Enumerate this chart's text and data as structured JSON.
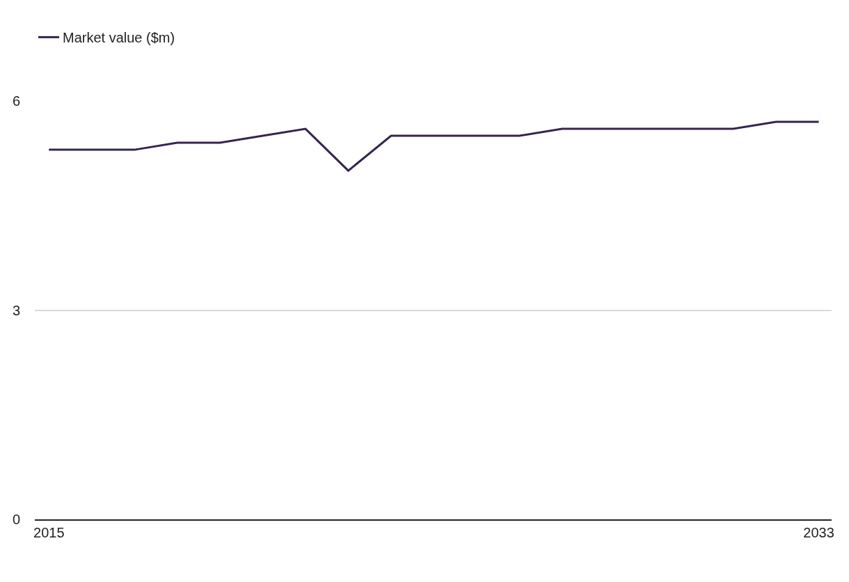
{
  "chart_data": {
    "type": "line",
    "x": [
      2015,
      2016,
      2017,
      2018,
      2019,
      2020,
      2021,
      2022,
      2023,
      2024,
      2025,
      2026,
      2027,
      2028,
      2029,
      2030,
      2031,
      2032,
      2033
    ],
    "series": [
      {
        "name": "Market value ($m)",
        "color": "#35244f",
        "values": [
          5.3,
          5.3,
          5.3,
          5.4,
          5.4,
          5.5,
          5.6,
          5.0,
          5.5,
          5.5,
          5.5,
          5.5,
          5.6,
          5.6,
          5.6,
          5.6,
          5.6,
          5.7,
          5.7
        ]
      }
    ],
    "xlim": [
      2014.67,
      2033.3
    ],
    "xticks": [
      2015,
      2033
    ],
    "ylim": [
      0,
      6
    ],
    "yticks": [
      0,
      3,
      6
    ],
    "grid": "y",
    "legend": "top left",
    "marker": "none",
    "line_style": "solid"
  }
}
